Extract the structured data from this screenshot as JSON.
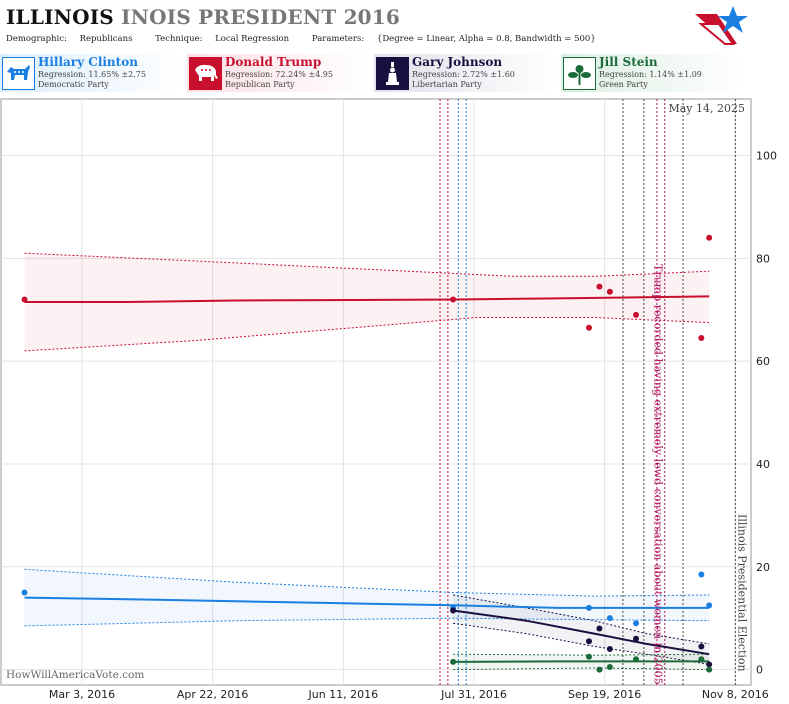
{
  "header": {
    "title_main": "ILLINOIS",
    "title_grey": "INOIS PRESIDENT 2016",
    "demographic_label": "Demographic:",
    "demographic_value": "Republicans",
    "technique_label": "Technique:",
    "technique_value": "Local Regression",
    "parameters_label": "Parameters:",
    "parameters_value": "{Degree = Linear, Alpha = 0.8, Bandwidth = 500}"
  },
  "candidates": [
    {
      "name": "Hillary Clinton",
      "regression": "Regression: 11.65% ±2.75",
      "party": "Democratic Party",
      "color": "#1a7fe0",
      "icon": "donkey-icon"
    },
    {
      "name": "Donald Trump",
      "regression": "Regression: 72.24% ±4.95",
      "party": "Republican Party",
      "color": "#c8102e",
      "icon": "elephant-icon"
    },
    {
      "name": "Gary Johnson",
      "regression": "Regression: 2.72% ±1.60",
      "party": "Libertarian Party",
      "color": "#1a1040",
      "icon": "liberty-icon"
    },
    {
      "name": "Jill Stein",
      "regression": "Regression: 1.14% ±1.09",
      "party": "Green Party",
      "color": "#1b6b3a",
      "icon": "flower-icon"
    }
  ],
  "chart_data": {
    "type": "line",
    "date_label": "May 14, 2025",
    "watermark": "HowWillAmericaVote.com",
    "x_ticks": [
      "Mar 3, 2016",
      "Apr 22, 2016",
      "Jun 11, 2016",
      "Jul 31, 2016",
      "Sep 19, 2016",
      "Nov 8, 2016"
    ],
    "x_range": [
      "2016-02-01",
      "2016-11-14"
    ],
    "y_ticks": [
      0,
      20,
      40,
      60,
      80,
      100
    ],
    "ylim": [
      -3,
      111
    ],
    "annotations": [
      {
        "date": "2016-10-07",
        "text": "Trump recorded having extremely lewd conversation about women in 2005",
        "color": "#b0125a"
      },
      {
        "date": "2016-11-08",
        "text": "Illinois Presidential Election",
        "color": "#444444"
      }
    ],
    "event_lines": [
      {
        "date": "2016-07-18",
        "color": "#c8102e"
      },
      {
        "date": "2016-07-21",
        "color": "#c8102e"
      },
      {
        "date": "2016-07-25",
        "color": "#1a7fe0"
      },
      {
        "date": "2016-07-28",
        "color": "#1a7fe0"
      },
      {
        "date": "2016-09-26",
        "color": "#444444"
      },
      {
        "date": "2016-10-04",
        "color": "#444444"
      },
      {
        "date": "2016-10-09",
        "color": "#b0125a"
      },
      {
        "date": "2016-10-12",
        "color": "#b0125a"
      },
      {
        "date": "2016-10-19",
        "color": "#444444"
      },
      {
        "date": "2016-11-08",
        "color": "#444444"
      }
    ],
    "series": [
      {
        "name": "Donald Trump",
        "color": "#c8102e",
        "points": [
          [
            "2016-02-10",
            72
          ],
          [
            "2016-07-23",
            72
          ],
          [
            "2016-09-13",
            66.5
          ],
          [
            "2016-09-17",
            74.5
          ],
          [
            "2016-09-21",
            73.5
          ],
          [
            "2016-10-01",
            69
          ],
          [
            "2016-10-26",
            64.5
          ],
          [
            "2016-10-29",
            84
          ]
        ],
        "fit": [
          [
            "2016-02-10",
            71.5
          ],
          [
            "2016-03-20",
            71.5
          ],
          [
            "2016-05-01",
            71.8
          ],
          [
            "2016-06-15",
            71.9
          ],
          [
            "2016-07-23",
            72
          ],
          [
            "2016-09-01",
            72.2
          ],
          [
            "2016-10-29",
            72.6
          ]
        ],
        "upper": [
          [
            "2016-02-10",
            81
          ],
          [
            "2016-04-15",
            79.5
          ],
          [
            "2016-06-15",
            78
          ],
          [
            "2016-08-15",
            76.5
          ],
          [
            "2016-09-15",
            76.5
          ],
          [
            "2016-10-29",
            77.5
          ]
        ],
        "lower": [
          [
            "2016-02-10",
            62
          ],
          [
            "2016-04-15",
            64
          ],
          [
            "2016-06-15",
            66.5
          ],
          [
            "2016-08-01",
            68.5
          ],
          [
            "2016-09-15",
            68.5
          ],
          [
            "2016-10-29",
            67.5
          ]
        ]
      },
      {
        "name": "Hillary Clinton",
        "color": "#1a7fe0",
        "points": [
          [
            "2016-02-10",
            15
          ],
          [
            "2016-07-23",
            12
          ],
          [
            "2016-09-13",
            12
          ],
          [
            "2016-09-21",
            10
          ],
          [
            "2016-10-01",
            9
          ],
          [
            "2016-10-26",
            18.5
          ],
          [
            "2016-10-29",
            12.5
          ]
        ],
        "fit": [
          [
            "2016-02-10",
            14
          ],
          [
            "2016-04-01",
            13.6
          ],
          [
            "2016-06-01",
            13
          ],
          [
            "2016-07-23",
            12.5
          ],
          [
            "2016-09-01",
            12
          ],
          [
            "2016-10-29",
            12
          ]
        ],
        "upper": [
          [
            "2016-02-10",
            19.5
          ],
          [
            "2016-05-01",
            17
          ],
          [
            "2016-07-23",
            15
          ],
          [
            "2016-09-15",
            14.3
          ],
          [
            "2016-10-29",
            14.5
          ]
        ],
        "lower": [
          [
            "2016-02-10",
            8.5
          ],
          [
            "2016-05-01",
            9.5
          ],
          [
            "2016-07-23",
            10
          ],
          [
            "2016-09-15",
            9.7
          ],
          [
            "2016-10-29",
            9.5
          ]
        ]
      },
      {
        "name": "Gary Johnson",
        "color": "#1a1040",
        "points": [
          [
            "2016-07-23",
            11.5
          ],
          [
            "2016-09-13",
            5.5
          ],
          [
            "2016-09-17",
            8
          ],
          [
            "2016-09-21",
            4
          ],
          [
            "2016-10-01",
            6
          ],
          [
            "2016-10-26",
            4.5
          ],
          [
            "2016-10-29",
            1
          ]
        ],
        "fit": [
          [
            "2016-07-23",
            11.5
          ],
          [
            "2016-08-20",
            9.5
          ],
          [
            "2016-09-15",
            7
          ],
          [
            "2016-10-05",
            5
          ],
          [
            "2016-10-29",
            3
          ]
        ],
        "upper": [
          [
            "2016-07-23",
            14.5
          ],
          [
            "2016-08-20",
            12
          ],
          [
            "2016-09-15",
            9.5
          ],
          [
            "2016-10-05",
            7
          ],
          [
            "2016-10-29",
            5
          ]
        ],
        "lower": [
          [
            "2016-07-23",
            9
          ],
          [
            "2016-08-20",
            7
          ],
          [
            "2016-09-15",
            4.5
          ],
          [
            "2016-10-05",
            3
          ],
          [
            "2016-10-29",
            1
          ]
        ]
      },
      {
        "name": "Jill Stein",
        "color": "#1b6b3a",
        "points": [
          [
            "2016-07-23",
            1.5
          ],
          [
            "2016-09-13",
            2.5
          ],
          [
            "2016-09-17",
            0
          ],
          [
            "2016-09-21",
            0.5
          ],
          [
            "2016-10-01",
            2
          ],
          [
            "2016-10-26",
            2
          ],
          [
            "2016-10-29",
            0
          ]
        ],
        "fit": [
          [
            "2016-07-23",
            1.5
          ],
          [
            "2016-09-01",
            1.6
          ],
          [
            "2016-10-29",
            1.6
          ]
        ],
        "upper": [
          [
            "2016-07-23",
            3
          ],
          [
            "2016-09-15",
            2.8
          ],
          [
            "2016-10-29",
            3
          ]
        ],
        "lower": [
          [
            "2016-07-23",
            0
          ],
          [
            "2016-09-15",
            0.3
          ],
          [
            "2016-10-29",
            0
          ]
        ]
      }
    ]
  }
}
